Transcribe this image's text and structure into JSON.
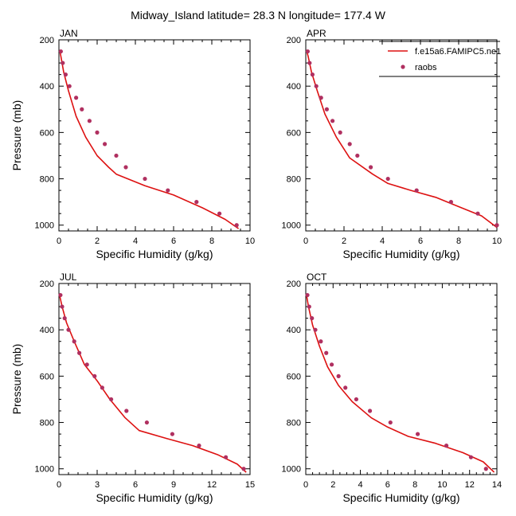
{
  "title": "Midway_Island  latitude= 28.3 N longitude= 177.4 W",
  "legend": {
    "model_label": "f.e15a6.FAMIPC5.ne1",
    "obs_label": "raobs",
    "model_color": "#dd1111",
    "obs_color": "#b03060"
  },
  "chart_data": [
    {
      "type": "line",
      "panel_label": "JAN",
      "xlabel": "Specific Humidity (g/kg)",
      "ylabel": "Pressure (mb)",
      "xlim": [
        0,
        10
      ],
      "xticks": [
        0,
        2,
        4,
        6,
        8,
        10
      ],
      "ylim": [
        200,
        1025
      ],
      "yticks": [
        200,
        400,
        600,
        800,
        1000
      ],
      "y_reversed": true,
      "series": [
        {
          "name": "f.e15a6.FAMIPC5.ne1",
          "x": [
            9.4,
            8.7,
            7.5,
            6.0,
            4.5,
            3.0,
            2.6,
            2.0,
            1.4,
            0.9,
            0.5,
            0.25,
            0.1,
            0.05
          ],
          "y": [
            1015,
            975,
            925,
            870,
            830,
            780,
            750,
            700,
            620,
            530,
            420,
            340,
            270,
            250
          ]
        },
        {
          "name": "raobs",
          "x": [
            9.3,
            8.4,
            7.2,
            5.7,
            4.5,
            3.5,
            3.0,
            2.4,
            2.0,
            1.6,
            1.2,
            0.9,
            0.55,
            0.35,
            0.2,
            0.1
          ],
          "y": [
            1000,
            950,
            900,
            850,
            800,
            750,
            700,
            650,
            600,
            550,
            500,
            450,
            400,
            350,
            300,
            250
          ]
        }
      ]
    },
    {
      "type": "line",
      "panel_label": "APR",
      "xlabel": "Specific Humidity (g/kg)",
      "ylabel": "",
      "xlim": [
        0,
        10
      ],
      "xticks": [
        0,
        2,
        4,
        6,
        8,
        10
      ],
      "ylim": [
        200,
        1025
      ],
      "yticks": [
        200,
        400,
        600,
        800,
        1000
      ],
      "y_reversed": true,
      "series": [
        {
          "name": "f.e15a6.FAMIPC5.ne1",
          "x": [
            10.0,
            9.2,
            8.0,
            6.8,
            5.5,
            4.3,
            3.5,
            2.3,
            1.6,
            1.0,
            0.6,
            0.3,
            0.12,
            0.05
          ],
          "y": [
            1010,
            960,
            920,
            880,
            850,
            820,
            780,
            710,
            620,
            520,
            420,
            340,
            270,
            250
          ]
        },
        {
          "name": "raobs",
          "x": [
            10.0,
            9.0,
            7.6,
            5.8,
            4.3,
            3.4,
            2.7,
            2.3,
            1.8,
            1.4,
            1.1,
            0.8,
            0.55,
            0.35,
            0.2,
            0.1
          ],
          "y": [
            1000,
            950,
            900,
            850,
            800,
            750,
            700,
            650,
            600,
            550,
            500,
            450,
            400,
            350,
            300,
            250
          ]
        }
      ]
    },
    {
      "type": "line",
      "panel_label": "JUL",
      "xlabel": "Specific Humidity (g/kg)",
      "ylabel": "Pressure (mb)",
      "xlim": [
        0,
        15
      ],
      "xticks": [
        0,
        3,
        6,
        9,
        12,
        15
      ],
      "ylim": [
        200,
        1025
      ],
      "yticks": [
        200,
        400,
        600,
        800,
        1000
      ],
      "y_reversed": true,
      "series": [
        {
          "name": "f.e15a6.FAMIPC5.ne1",
          "x": [
            14.7,
            14.0,
            12.5,
            10.5,
            8.5,
            6.3,
            5.2,
            4.0,
            3.0,
            2.0,
            1.2,
            0.6,
            0.25,
            0.05
          ],
          "y": [
            1015,
            980,
            940,
            900,
            870,
            835,
            780,
            700,
            620,
            550,
            450,
            370,
            300,
            250
          ]
        },
        {
          "name": "raobs",
          "x": [
            14.5,
            13.1,
            11.0,
            8.9,
            6.9,
            5.3,
            4.1,
            3.4,
            2.8,
            2.2,
            1.6,
            1.2,
            0.75,
            0.45,
            0.25,
            0.12
          ],
          "y": [
            1000,
            950,
            900,
            850,
            800,
            750,
            700,
            650,
            600,
            550,
            500,
            450,
            400,
            350,
            300,
            250
          ]
        }
      ]
    },
    {
      "type": "line",
      "panel_label": "OCT",
      "xlabel": "Specific Humidity (g/kg)",
      "ylabel": "",
      "xlim": [
        0,
        14
      ],
      "xticks": [
        0,
        2,
        4,
        6,
        8,
        10,
        12,
        14
      ],
      "ylim": [
        200,
        1025
      ],
      "yticks": [
        200,
        400,
        600,
        800,
        1000
      ],
      "y_reversed": true,
      "series": [
        {
          "name": "f.e15a6.FAMIPC5.ne1",
          "x": [
            13.8,
            13.0,
            11.5,
            9.5,
            7.5,
            6.0,
            4.8,
            3.4,
            2.4,
            1.6,
            1.0,
            0.5,
            0.2,
            0.05
          ],
          "y": [
            1015,
            970,
            930,
            890,
            860,
            820,
            780,
            710,
            640,
            560,
            470,
            380,
            300,
            250
          ]
        },
        {
          "name": "raobs",
          "x": [
            13.2,
            12.1,
            10.3,
            8.2,
            6.2,
            4.7,
            3.7,
            2.9,
            2.4,
            1.9,
            1.5,
            1.1,
            0.7,
            0.45,
            0.25,
            0.12
          ],
          "y": [
            1000,
            950,
            900,
            850,
            800,
            750,
            700,
            650,
            600,
            550,
            500,
            450,
            400,
            350,
            300,
            250
          ]
        }
      ]
    }
  ]
}
